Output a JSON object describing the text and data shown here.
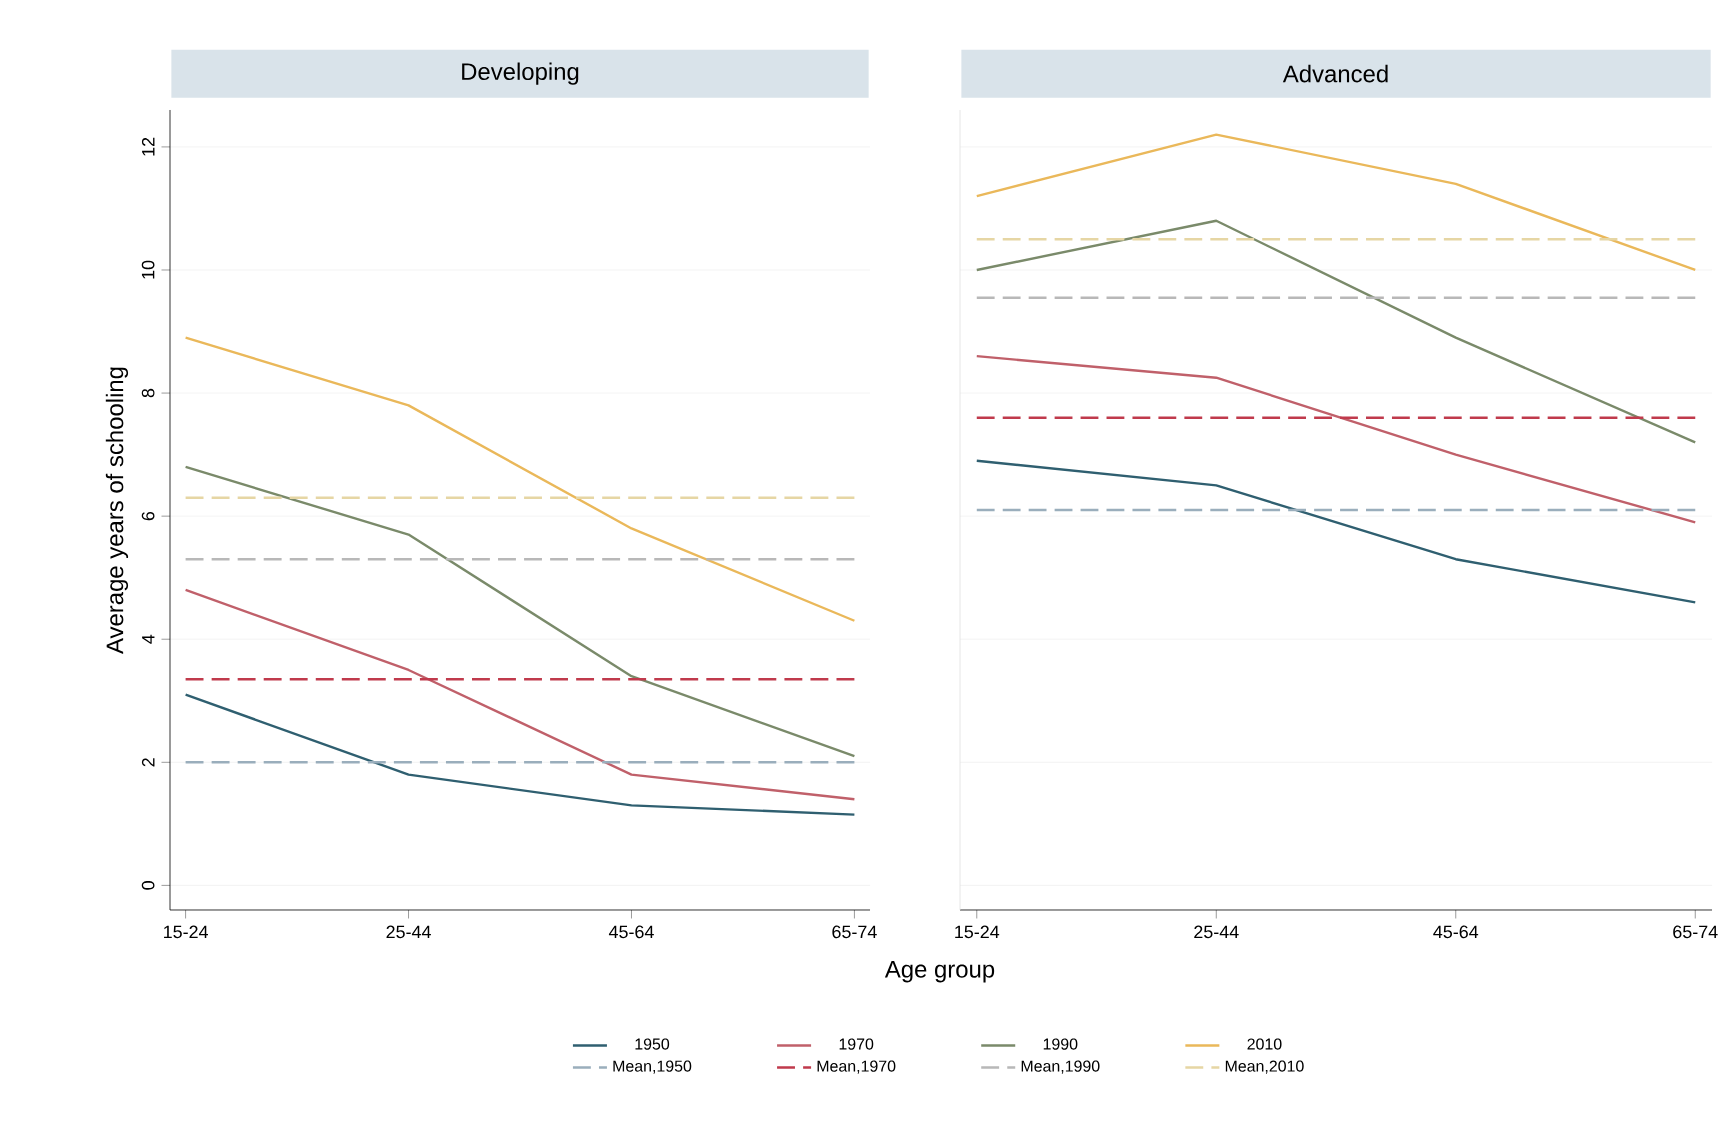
{
  "chart_data": [
    {
      "type": "line",
      "title": "Developing",
      "ylabel": "Average years of schooling",
      "xlabel": "Age group",
      "categories": [
        "15-24",
        "25-44",
        "45-64",
        "65-74"
      ],
      "series": [
        {
          "name": "1950",
          "color": "#2f5f70",
          "values": [
            3.1,
            1.8,
            1.3,
            1.15
          ]
        },
        {
          "name": "1970",
          "color": "#c0606a",
          "values": [
            4.8,
            3.5,
            1.8,
            1.4
          ]
        },
        {
          "name": "1990",
          "color": "#7a8a6a",
          "values": [
            6.8,
            5.7,
            3.4,
            2.1
          ]
        },
        {
          "name": "2010",
          "color": "#eab85a",
          "values": [
            8.9,
            7.8,
            5.8,
            4.3
          ]
        },
        {
          "name": "Mean,1950",
          "color": "#9aaebc",
          "line_style": "dashed",
          "values": [
            2.0,
            2.0,
            2.0,
            2.0
          ]
        },
        {
          "name": "Mean,1970",
          "color": "#c03a4c",
          "line_style": "dashed",
          "values": [
            3.35,
            3.35,
            3.35,
            3.35
          ]
        },
        {
          "name": "Mean,1990",
          "color": "#b8b8b8",
          "line_style": "dashed",
          "values": [
            5.3,
            5.3,
            5.3,
            5.3
          ]
        },
        {
          "name": "Mean,2010",
          "color": "#e6d6a4",
          "line_style": "dashed",
          "values": [
            6.3,
            6.3,
            6.3,
            6.3
          ]
        }
      ],
      "ylim": [
        -0.4,
        12.6
      ],
      "yticks": [
        0,
        2,
        4,
        6,
        8,
        10,
        12
      ],
      "grid": "y",
      "legend": "bottom"
    },
    {
      "type": "line",
      "title": "Advanced",
      "categories": [
        "15-24",
        "25-44",
        "45-64",
        "65-74"
      ],
      "series": [
        {
          "color": "#2f5f70",
          "values": [
            6.9,
            6.5,
            5.3,
            4.6
          ]
        },
        {
          "color": "#c0606a",
          "values": [
            8.6,
            8.25,
            7.0,
            5.9
          ]
        },
        {
          "color": "#7a8a6a",
          "values": [
            10.0,
            10.8,
            8.9,
            7.2
          ]
        },
        {
          "color": "#eab85a",
          "values": [
            11.2,
            12.2,
            11.4,
            10.0
          ]
        },
        {
          "color": "#9aaebc",
          "line_style": "dashed",
          "values": [
            6.1,
            6.1,
            6.1,
            6.1
          ]
        },
        {
          "color": "#c03a4c",
          "line_style": "dashed",
          "values": [
            7.6,
            7.6,
            7.6,
            7.6
          ]
        },
        {
          "color": "#b8b8b8",
          "line_style": "dashed",
          "values": [
            9.55,
            9.55,
            9.55,
            9.55
          ]
        },
        {
          "color": "#e6d6a4",
          "line_style": "dashed",
          "values": [
            10.5,
            10.5,
            10.5,
            10.5
          ]
        }
      ],
      "ylim": [
        -0.4,
        12.6
      ],
      "yticks": [
        0,
        2,
        4,
        6,
        8,
        10,
        12
      ],
      "grid": "y",
      "tick_labels": "x"
    }
  ]
}
